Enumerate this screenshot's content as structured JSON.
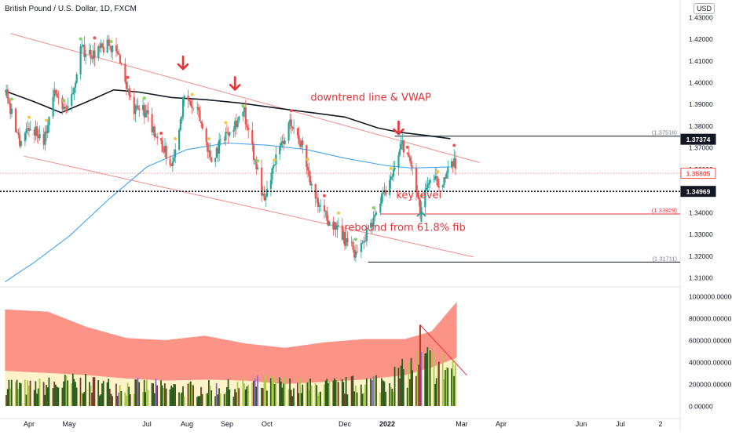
{
  "header": {
    "title": "British Pound / U.S. Dollar, 1D, FXCM",
    "currency_button": "USD"
  },
  "colors": {
    "up": "#26a69a",
    "down": "#ef5350",
    "channel": "#f28b8b",
    "vwap": "#131722",
    "ma": "#42a5f5",
    "annotation": "#e5333a",
    "green_dot": "#7ed957",
    "red_dot": "#ef5350",
    "yellow_dot": "#f5c542"
  },
  "chart_data": [
    {
      "type": "candlestick",
      "title": "British Pound / U.S. Dollar, 1D, FXCM",
      "ylim": [
        1.305,
        1.435
      ],
      "y_ticks": [
        "1.31000",
        "1.32000",
        "1.33000",
        "1.34000",
        "1.35000",
        "1.36000",
        "1.37000",
        "1.38000",
        "1.39000",
        "1.40000",
        "1.41000",
        "1.42000",
        "1.43000"
      ],
      "x_ticks": [
        "Apr",
        "May",
        "Jul",
        "Aug",
        "Sep",
        "Oct",
        "Dec",
        "2022",
        "Mar",
        "Apr",
        "Jun",
        "Jul",
        "2"
      ],
      "x_tick_dates": [
        "2021-04-01",
        "2021-05-01",
        "2021-07-01",
        "2021-08-01",
        "2021-09-01",
        "2021-10-01",
        "2021-12-01",
        "2022-01-01",
        "2022-03-01",
        "2022-04-01",
        "2022-06-01",
        "2022-07-01",
        "2022-08-01"
      ],
      "price_labels": [
        {
          "value": 1.37374,
          "text": "1.37374",
          "style": "dark"
        },
        {
          "value": 1.35805,
          "text": "1.35805",
          "style": "red"
        },
        {
          "value": 1.34969,
          "text": "1.34969",
          "style": "dark"
        }
      ],
      "levels": [
        {
          "value": 1.37516,
          "text": "(1.37516)",
          "color": "#131722"
        },
        {
          "value": 1.33929,
          "text": "(1.33929)",
          "color": "#e5333a"
        },
        {
          "value": 1.31711,
          "text": "(1.31711)",
          "color": "#131722"
        }
      ],
      "annotations": [
        {
          "text": "downtrend line & VWAP",
          "anchor": {
            "date": "2021-12-20",
            "value": 1.3915
          }
        },
        {
          "text": "key level",
          "anchor": {
            "date": "2022-01-26",
            "value": 1.3465
          }
        },
        {
          "text": "rebound from 61.8% fib",
          "anchor": {
            "date": "2022-01-15",
            "value": 1.3315
          }
        }
      ],
      "arrows": [
        {
          "direction": "down",
          "date": "2021-07-29",
          "value": 1.409
        },
        {
          "direction": "down",
          "date": "2021-09-07",
          "value": 1.3995
        },
        {
          "direction": "down",
          "date": "2022-01-10",
          "value": 1.379
        },
        {
          "direction": "up",
          "date": "2022-01-28",
          "value": 1.338
        }
      ],
      "channel": {
        "upper": [
          {
            "date": "2021-03-18",
            "value": 1.4225
          },
          {
            "date": "2022-03-15",
            "value": 1.363
          }
        ],
        "lower": [
          {
            "date": "2021-03-28",
            "value": 1.366
          },
          {
            "date": "2022-03-10",
            "value": 1.3195
          }
        ]
      },
      "series": [
        {
          "name": "VWAP",
          "kind": "line",
          "points": [
            {
              "date": "2021-03-14",
              "value": 1.396
            },
            {
              "date": "2021-04-05",
              "value": 1.391
            },
            {
              "date": "2021-04-25",
              "value": 1.386
            },
            {
              "date": "2021-05-15",
              "value": 1.391
            },
            {
              "date": "2021-06-05",
              "value": 1.3965
            },
            {
              "date": "2021-06-25",
              "value": 1.3955
            },
            {
              "date": "2021-07-20",
              "value": 1.393
            },
            {
              "date": "2021-08-15",
              "value": 1.392
            },
            {
              "date": "2021-09-10",
              "value": 1.3905
            },
            {
              "date": "2021-10-10",
              "value": 1.388
            },
            {
              "date": "2021-11-05",
              "value": 1.386
            },
            {
              "date": "2021-12-01",
              "value": 1.384
            },
            {
              "date": "2021-12-25",
              "value": 1.379
            },
            {
              "date": "2022-01-10",
              "value": 1.377
            },
            {
              "date": "2022-02-01",
              "value": 1.3755
            },
            {
              "date": "2022-02-20",
              "value": 1.374
            }
          ]
        },
        {
          "name": "MA",
          "kind": "line",
          "points": [
            {
              "date": "2021-03-14",
              "value": 1.308
            },
            {
              "date": "2021-04-05",
              "value": 1.317
            },
            {
              "date": "2021-05-01",
              "value": 1.329
            },
            {
              "date": "2021-06-01",
              "value": 1.346
            },
            {
              "date": "2021-07-01",
              "value": 1.361
            },
            {
              "date": "2021-08-01",
              "value": 1.369
            },
            {
              "date": "2021-09-01",
              "value": 1.372
            },
            {
              "date": "2021-10-01",
              "value": 1.371
            },
            {
              "date": "2021-11-01",
              "value": 1.369
            },
            {
              "date": "2021-12-01",
              "value": 1.365
            },
            {
              "date": "2022-01-01",
              "value": 1.3615
            },
            {
              "date": "2022-01-20",
              "value": 1.3605
            },
            {
              "date": "2022-02-20",
              "value": 1.361
            }
          ]
        },
        {
          "name": "price",
          "kind": "ohlc",
          "points": [
            {
              "date": "2021-03-15",
              "value": 1.394
            },
            {
              "date": "2021-03-25",
              "value": 1.373
            },
            {
              "date": "2021-04-01",
              "value": 1.38
            },
            {
              "date": "2021-04-12",
              "value": 1.374
            },
            {
              "date": "2021-04-20",
              "value": 1.395
            },
            {
              "date": "2021-05-01",
              "value": 1.386
            },
            {
              "date": "2021-05-10",
              "value": 1.415
            },
            {
              "date": "2021-05-20",
              "value": 1.413
            },
            {
              "date": "2021-06-01",
              "value": 1.417
            },
            {
              "date": "2021-06-10",
              "value": 1.411
            },
            {
              "date": "2021-06-20",
              "value": 1.386
            },
            {
              "date": "2021-06-28",
              "value": 1.388
            },
            {
              "date": "2021-07-08",
              "value": 1.376
            },
            {
              "date": "2021-07-20",
              "value": 1.362
            },
            {
              "date": "2021-07-30",
              "value": 1.393
            },
            {
              "date": "2021-08-10",
              "value": 1.385
            },
            {
              "date": "2021-08-20",
              "value": 1.364
            },
            {
              "date": "2021-08-31",
              "value": 1.377
            },
            {
              "date": "2021-09-14",
              "value": 1.386
            },
            {
              "date": "2021-09-29",
              "value": 1.345
            },
            {
              "date": "2021-10-06",
              "value": 1.362
            },
            {
              "date": "2021-10-20",
              "value": 1.382
            },
            {
              "date": "2021-10-29",
              "value": 1.369
            },
            {
              "date": "2021-11-10",
              "value": 1.342
            },
            {
              "date": "2021-11-25",
              "value": 1.332
            },
            {
              "date": "2021-12-08",
              "value": 1.322
            },
            {
              "date": "2021-12-14",
              "value": 1.326
            },
            {
              "date": "2021-12-22",
              "value": 1.338
            },
            {
              "date": "2022-01-05",
              "value": 1.356
            },
            {
              "date": "2022-01-13",
              "value": 1.372
            },
            {
              "date": "2022-01-20",
              "value": 1.362
            },
            {
              "date": "2022-01-27",
              "value": 1.34
            },
            {
              "date": "2022-02-03",
              "value": 1.355
            },
            {
              "date": "2022-02-10",
              "value": 1.354
            },
            {
              "date": "2022-02-16",
              "value": 1.356
            },
            {
              "date": "2022-02-22",
              "value": 1.362
            }
          ]
        }
      ]
    },
    {
      "type": "bar",
      "title": "",
      "ylim": [
        0,
        1000000
      ],
      "y_ticks": [
        "0.00000",
        "200000.00000",
        "400000.00000",
        "600000.00000",
        "800000.00000",
        "1000000.00000"
      ],
      "series": [
        {
          "name": "volume",
          "kind": "bar",
          "points": [
            {
              "date": "2021-03-15",
              "value": 220000
            },
            {
              "date": "2021-04-01",
              "value": 180000
            },
            {
              "date": "2021-05-01",
              "value": 230000
            },
            {
              "date": "2021-06-01",
              "value": 200000
            },
            {
              "date": "2021-07-01",
              "value": 190000
            },
            {
              "date": "2021-08-01",
              "value": 170000
            },
            {
              "date": "2021-09-01",
              "value": 180000
            },
            {
              "date": "2021-10-01",
              "value": 220000
            },
            {
              "date": "2021-11-01",
              "value": 190000
            },
            {
              "date": "2021-12-01",
              "value": 200000
            },
            {
              "date": "2021-12-30",
              "value": 250000
            },
            {
              "date": "2022-01-15",
              "value": 330000
            },
            {
              "date": "2022-01-30",
              "value": 450000
            },
            {
              "date": "2022-02-15",
              "value": 380000
            }
          ]
        },
        {
          "name": "band_upper",
          "kind": "area",
          "points": [
            {
              "date": "2021-03-14",
              "value": 880000
            },
            {
              "date": "2021-04-15",
              "value": 860000
            },
            {
              "date": "2021-05-15",
              "value": 720000
            },
            {
              "date": "2021-06-15",
              "value": 620000
            },
            {
              "date": "2021-07-15",
              "value": 600000
            },
            {
              "date": "2021-08-15",
              "value": 640000
            },
            {
              "date": "2021-09-15",
              "value": 570000
            },
            {
              "date": "2021-10-15",
              "value": 530000
            },
            {
              "date": "2021-11-15",
              "value": 580000
            },
            {
              "date": "2021-12-15",
              "value": 610000
            },
            {
              "date": "2022-01-15",
              "value": 610000
            },
            {
              "date": "2022-02-05",
              "value": 680000
            },
            {
              "date": "2022-02-25",
              "value": 950000
            }
          ]
        },
        {
          "name": "band_lower",
          "kind": "area",
          "points": [
            {
              "date": "2021-03-14",
              "value": 320000
            },
            {
              "date": "2021-04-15",
              "value": 300000
            },
            {
              "date": "2021-05-15",
              "value": 280000
            },
            {
              "date": "2021-06-15",
              "value": 250000
            },
            {
              "date": "2021-07-15",
              "value": 230000
            },
            {
              "date": "2021-08-15",
              "value": 240000
            },
            {
              "date": "2021-09-15",
              "value": 230000
            },
            {
              "date": "2021-10-15",
              "value": 200000
            },
            {
              "date": "2021-11-15",
              "value": 220000
            },
            {
              "date": "2021-12-15",
              "value": 240000
            },
            {
              "date": "2022-01-15",
              "value": 280000
            },
            {
              "date": "2022-02-05",
              "value": 350000
            },
            {
              "date": "2022-02-25",
              "value": 440000
            }
          ]
        }
      ]
    }
  ]
}
